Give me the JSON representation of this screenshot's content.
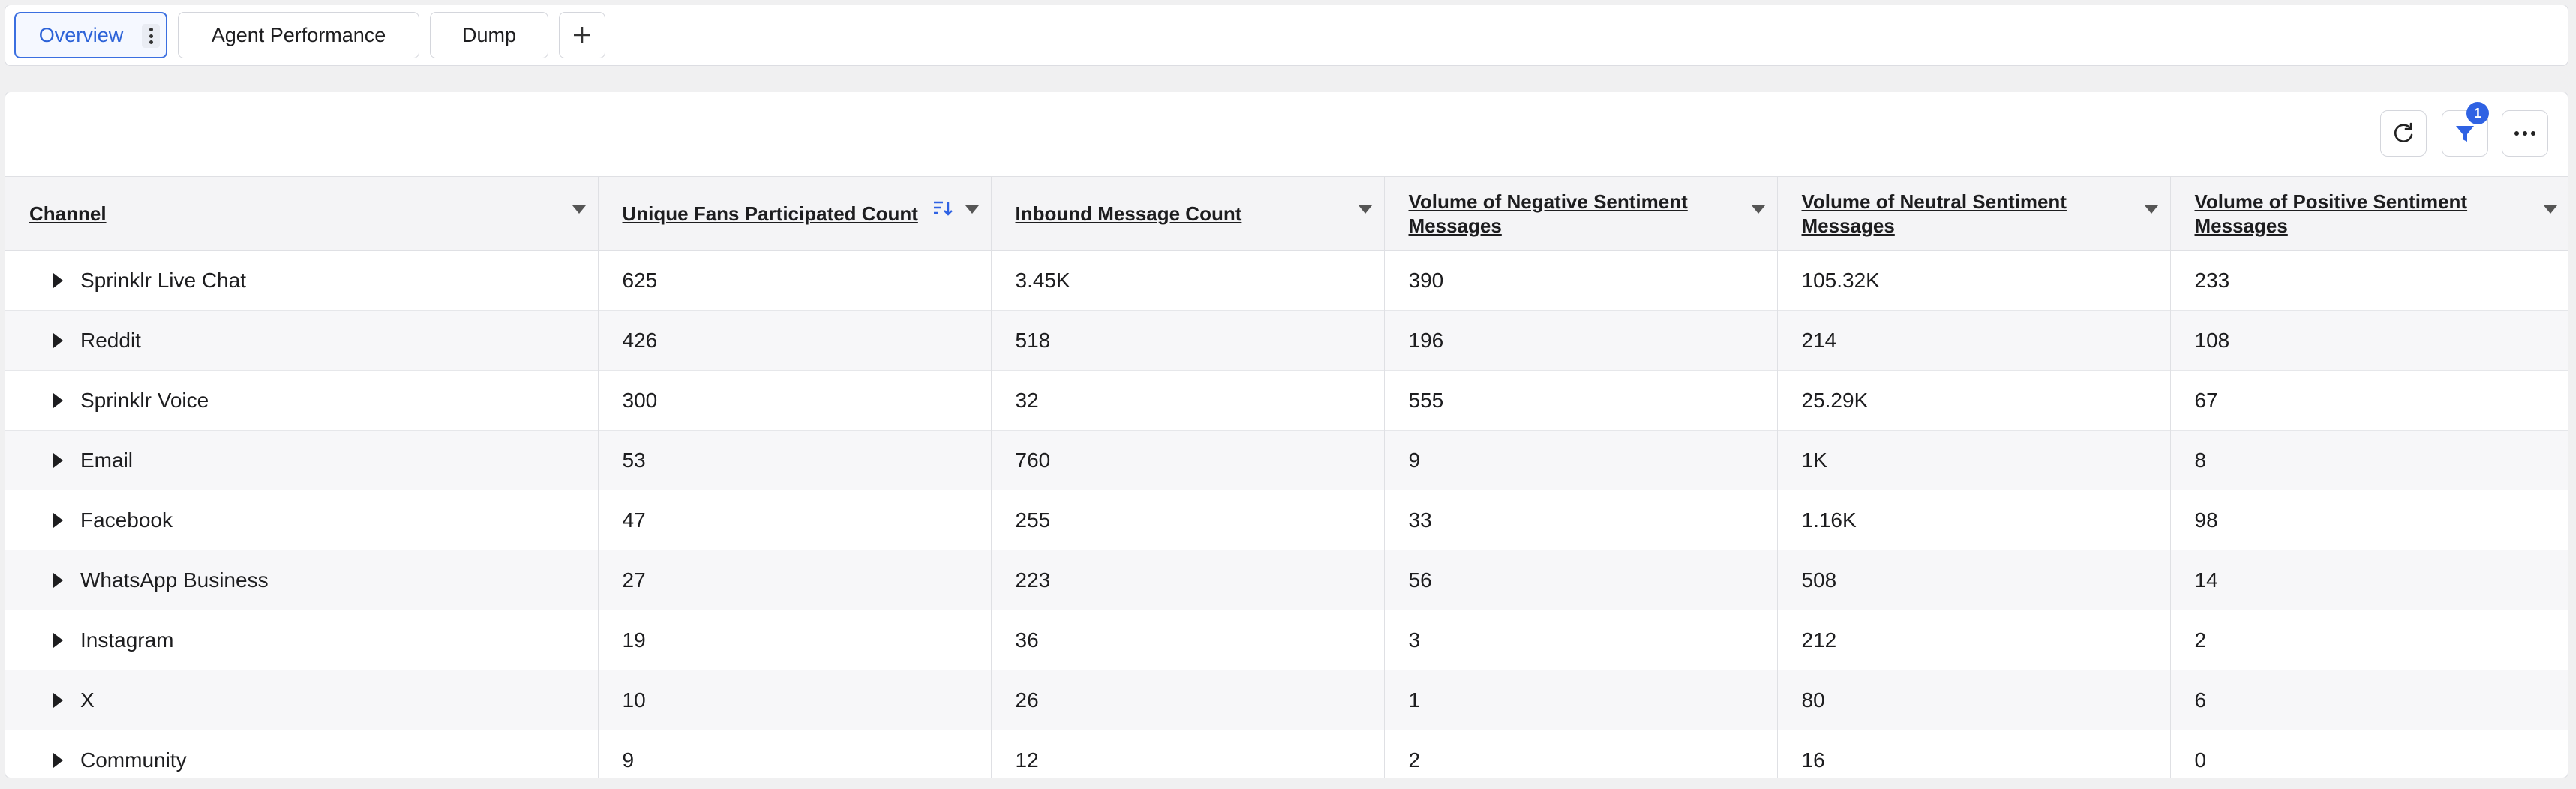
{
  "tabs": [
    {
      "label": "Overview",
      "active": true
    },
    {
      "label": "Agent Performance",
      "active": false
    },
    {
      "label": "Dump",
      "active": false
    }
  ],
  "add_tab_icon": "plus-icon",
  "toolbar": {
    "refresh_icon": "refresh-icon",
    "filter_icon": "filter-icon",
    "filter_badge": "1",
    "more_icon": "more-horizontal-icon"
  },
  "colors": {
    "accent": "#2f62e3",
    "header_bg": "#f4f4f6",
    "row_alt_bg": "#f7f7f9"
  },
  "table": {
    "columns": [
      "Channel",
      "Unique Fans Participated Count",
      "Inbound Message Count",
      "Volume of Negative Sentiment Messages",
      "Volume of Neutral Sentiment Messages",
      "Volume of Positive Sentiment Messages"
    ],
    "rows": [
      [
        "Sprinklr Live Chat",
        "625",
        "3.45K",
        "390",
        "105.32K",
        "233"
      ],
      [
        "Reddit",
        "426",
        "518",
        "196",
        "214",
        "108"
      ],
      [
        "Sprinklr Voice",
        "300",
        "32",
        "555",
        "25.29K",
        "67"
      ],
      [
        "Email",
        "53",
        "760",
        "9",
        "1K",
        "8"
      ],
      [
        "Facebook",
        "47",
        "255",
        "33",
        "1.16K",
        "98"
      ],
      [
        "WhatsApp Business",
        "27",
        "223",
        "56",
        "508",
        "14"
      ],
      [
        "Instagram",
        "19",
        "36",
        "3",
        "212",
        "2"
      ],
      [
        "X",
        "10",
        "26",
        "1",
        "80",
        "6"
      ],
      [
        "Community",
        "9",
        "12",
        "2",
        "16",
        "0"
      ]
    ]
  }
}
